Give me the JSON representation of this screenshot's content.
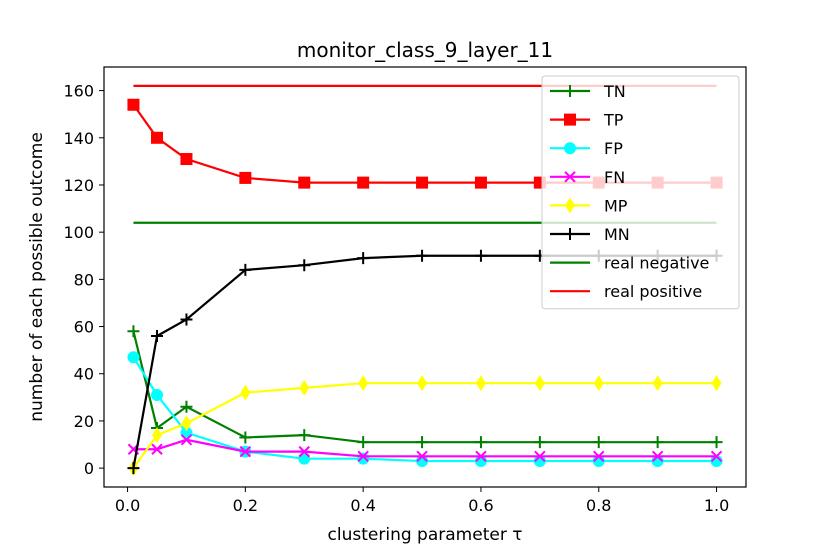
{
  "chart_data": {
    "type": "line",
    "title": "monitor_class_9_layer_11",
    "xlabel": "clustering parameter τ",
    "ylabel": "number of each possible outcome",
    "xlim": [
      -0.04,
      1.05
    ],
    "ylim": [
      -8,
      170
    ],
    "xticks": [
      0.0,
      0.2,
      0.4,
      0.6,
      0.8,
      1.0
    ],
    "xtick_labels": [
      "0.0",
      "0.2",
      "0.4",
      "0.6",
      "0.8",
      "1.0"
    ],
    "yticks": [
      0,
      20,
      40,
      60,
      80,
      100,
      120,
      140,
      160
    ],
    "ytick_labels": [
      "0",
      "20",
      "40",
      "60",
      "80",
      "100",
      "120",
      "140",
      "160"
    ],
    "x": [
      0.01,
      0.05,
      0.1,
      0.2,
      0.3,
      0.4,
      0.5,
      0.6,
      0.7,
      0.8,
      0.9,
      1.0
    ],
    "legend_position": "top-right",
    "series": [
      {
        "name": "TN",
        "color": "#008000",
        "marker": "plus",
        "values": [
          58,
          17,
          26,
          13,
          14,
          11,
          11,
          11,
          11,
          11,
          11,
          11
        ]
      },
      {
        "name": "TP",
        "color": "#ff0000",
        "marker": "square",
        "values": [
          154,
          140,
          131,
          123,
          121,
          121,
          121,
          121,
          121,
          121,
          121,
          121
        ]
      },
      {
        "name": "FP",
        "color": "#00ffff",
        "marker": "circle",
        "values": [
          47,
          31,
          15,
          7,
          4,
          4,
          3,
          3,
          3,
          3,
          3,
          3
        ]
      },
      {
        "name": "FN",
        "color": "#ff00ff",
        "marker": "x",
        "values": [
          8,
          8,
          12,
          7,
          7,
          5,
          5,
          5,
          5,
          5,
          5,
          5
        ]
      },
      {
        "name": "MP",
        "color": "#ffff00",
        "marker": "diamond",
        "values": [
          0,
          14,
          19,
          32,
          34,
          36,
          36,
          36,
          36,
          36,
          36,
          36
        ]
      },
      {
        "name": "MN",
        "color": "#000000",
        "marker": "plus",
        "values": [
          0,
          56,
          63,
          84,
          86,
          89,
          90,
          90,
          90,
          90,
          90,
          90
        ]
      },
      {
        "name": "real negative",
        "color": "#008000",
        "marker": "none",
        "values": [
          104,
          104,
          104,
          104,
          104,
          104,
          104,
          104,
          104,
          104,
          104,
          104
        ]
      },
      {
        "name": "real positive",
        "color": "#ff0000",
        "marker": "none",
        "values": [
          162,
          162,
          162,
          162,
          162,
          162,
          162,
          162,
          162,
          162,
          162,
          162
        ]
      }
    ]
  }
}
